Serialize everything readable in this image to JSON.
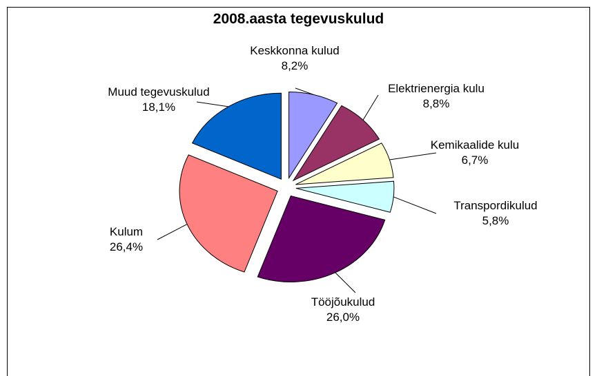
{
  "chart_data": {
    "type": "pie",
    "title": "2008.aasta tegevuskulud",
    "categories": [
      "Keskkonna kulud",
      "Elektrienergia kulu",
      "Kemikaalide kulu",
      "Transpordikulud",
      "Tööjõukulud",
      "Kulum",
      "Muud tegevuskulud"
    ],
    "values": [
      8.2,
      8.8,
      6.7,
      5.8,
      26.0,
      26.4,
      18.1
    ],
    "value_labels": [
      "8,2%",
      "8,8%",
      "6,7%",
      "5,8%",
      "26,0%",
      "26,4%",
      "18,1%"
    ],
    "colors": [
      "#9999ff",
      "#993366",
      "#ffffcc",
      "#ccffff",
      "#660066",
      "#ff8080",
      "#0066cc"
    ]
  }
}
